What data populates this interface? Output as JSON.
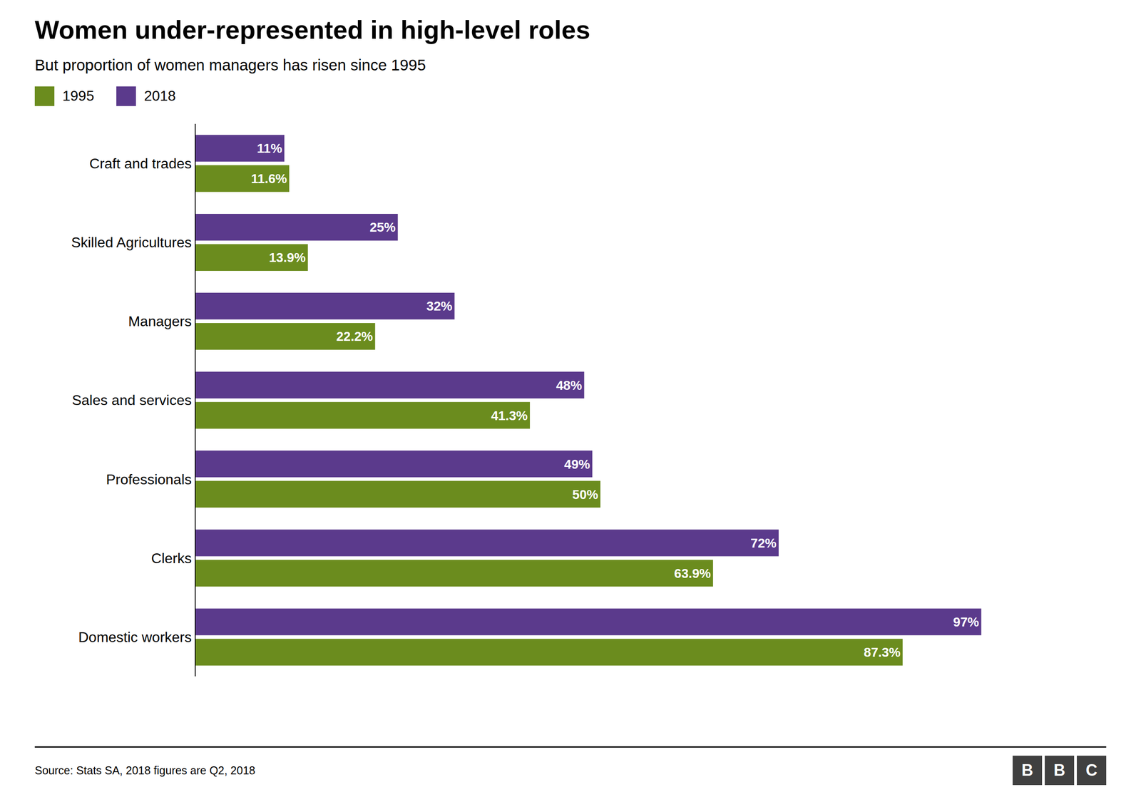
{
  "chart_data": {
    "type": "bar",
    "orientation": "horizontal",
    "title": "Women under-represented in high-level roles",
    "subtitle": "But proportion of women managers has risen since 1995",
    "source": "Source: Stats SA, 2018 figures are Q2, 2018",
    "annotations": [
      "BBC"
    ],
    "categories": [
      "Domestic workers",
      "Clerks",
      "Professionals",
      "Sales and services",
      "Managers",
      "Skilled Agricultures",
      "Craft and trades"
    ],
    "series": [
      {
        "name": "1995",
        "color": "#6b8c1e",
        "values": [
          87.3,
          63.9,
          50.0,
          41.3,
          22.2,
          13.9,
          11.6
        ],
        "value_labels": [
          "87.3%",
          "63.9%",
          "50%",
          "41.3%",
          "22.2%",
          "13.9%",
          "11.6%"
        ]
      },
      {
        "name": "2018",
        "color": "#5b3a8c",
        "values": [
          97.0,
          72.0,
          49.0,
          48.0,
          32.0,
          25.0,
          11.0
        ],
        "value_labels": [
          "97%",
          "72%",
          "49%",
          "48%",
          "32%",
          "25%",
          "11%"
        ]
      }
    ],
    "xlim": [
      0,
      110
    ],
    "data_labels": true,
    "tick_labels": "y",
    "grid": false,
    "legend": "top left"
  }
}
